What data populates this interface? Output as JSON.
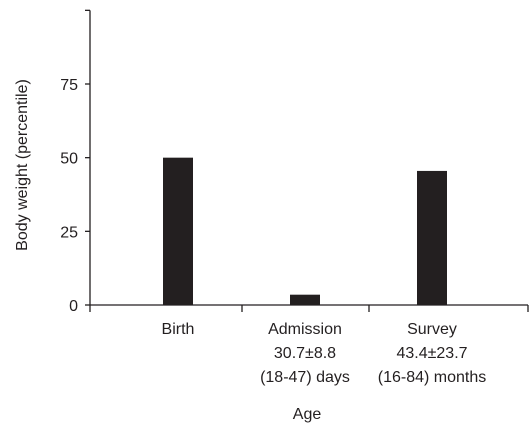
{
  "chart_data": {
    "type": "bar",
    "categories": [
      {
        "lines": [
          "Birth"
        ]
      },
      {
        "lines": [
          "Admission",
          "30.7±8.8",
          "(18-47) days"
        ]
      },
      {
        "lines": [
          "Survey",
          "43.4±23.7",
          "(16-84) months"
        ]
      }
    ],
    "values": [
      50,
      3.5,
      45.5
    ],
    "ylabel": "Body weight (percentile)",
    "xlabel": "Age",
    "yticks": [
      0,
      25,
      50,
      75
    ],
    "ylim": [
      0,
      100
    ],
    "bar_color": "#231f20",
    "grid": false
  }
}
